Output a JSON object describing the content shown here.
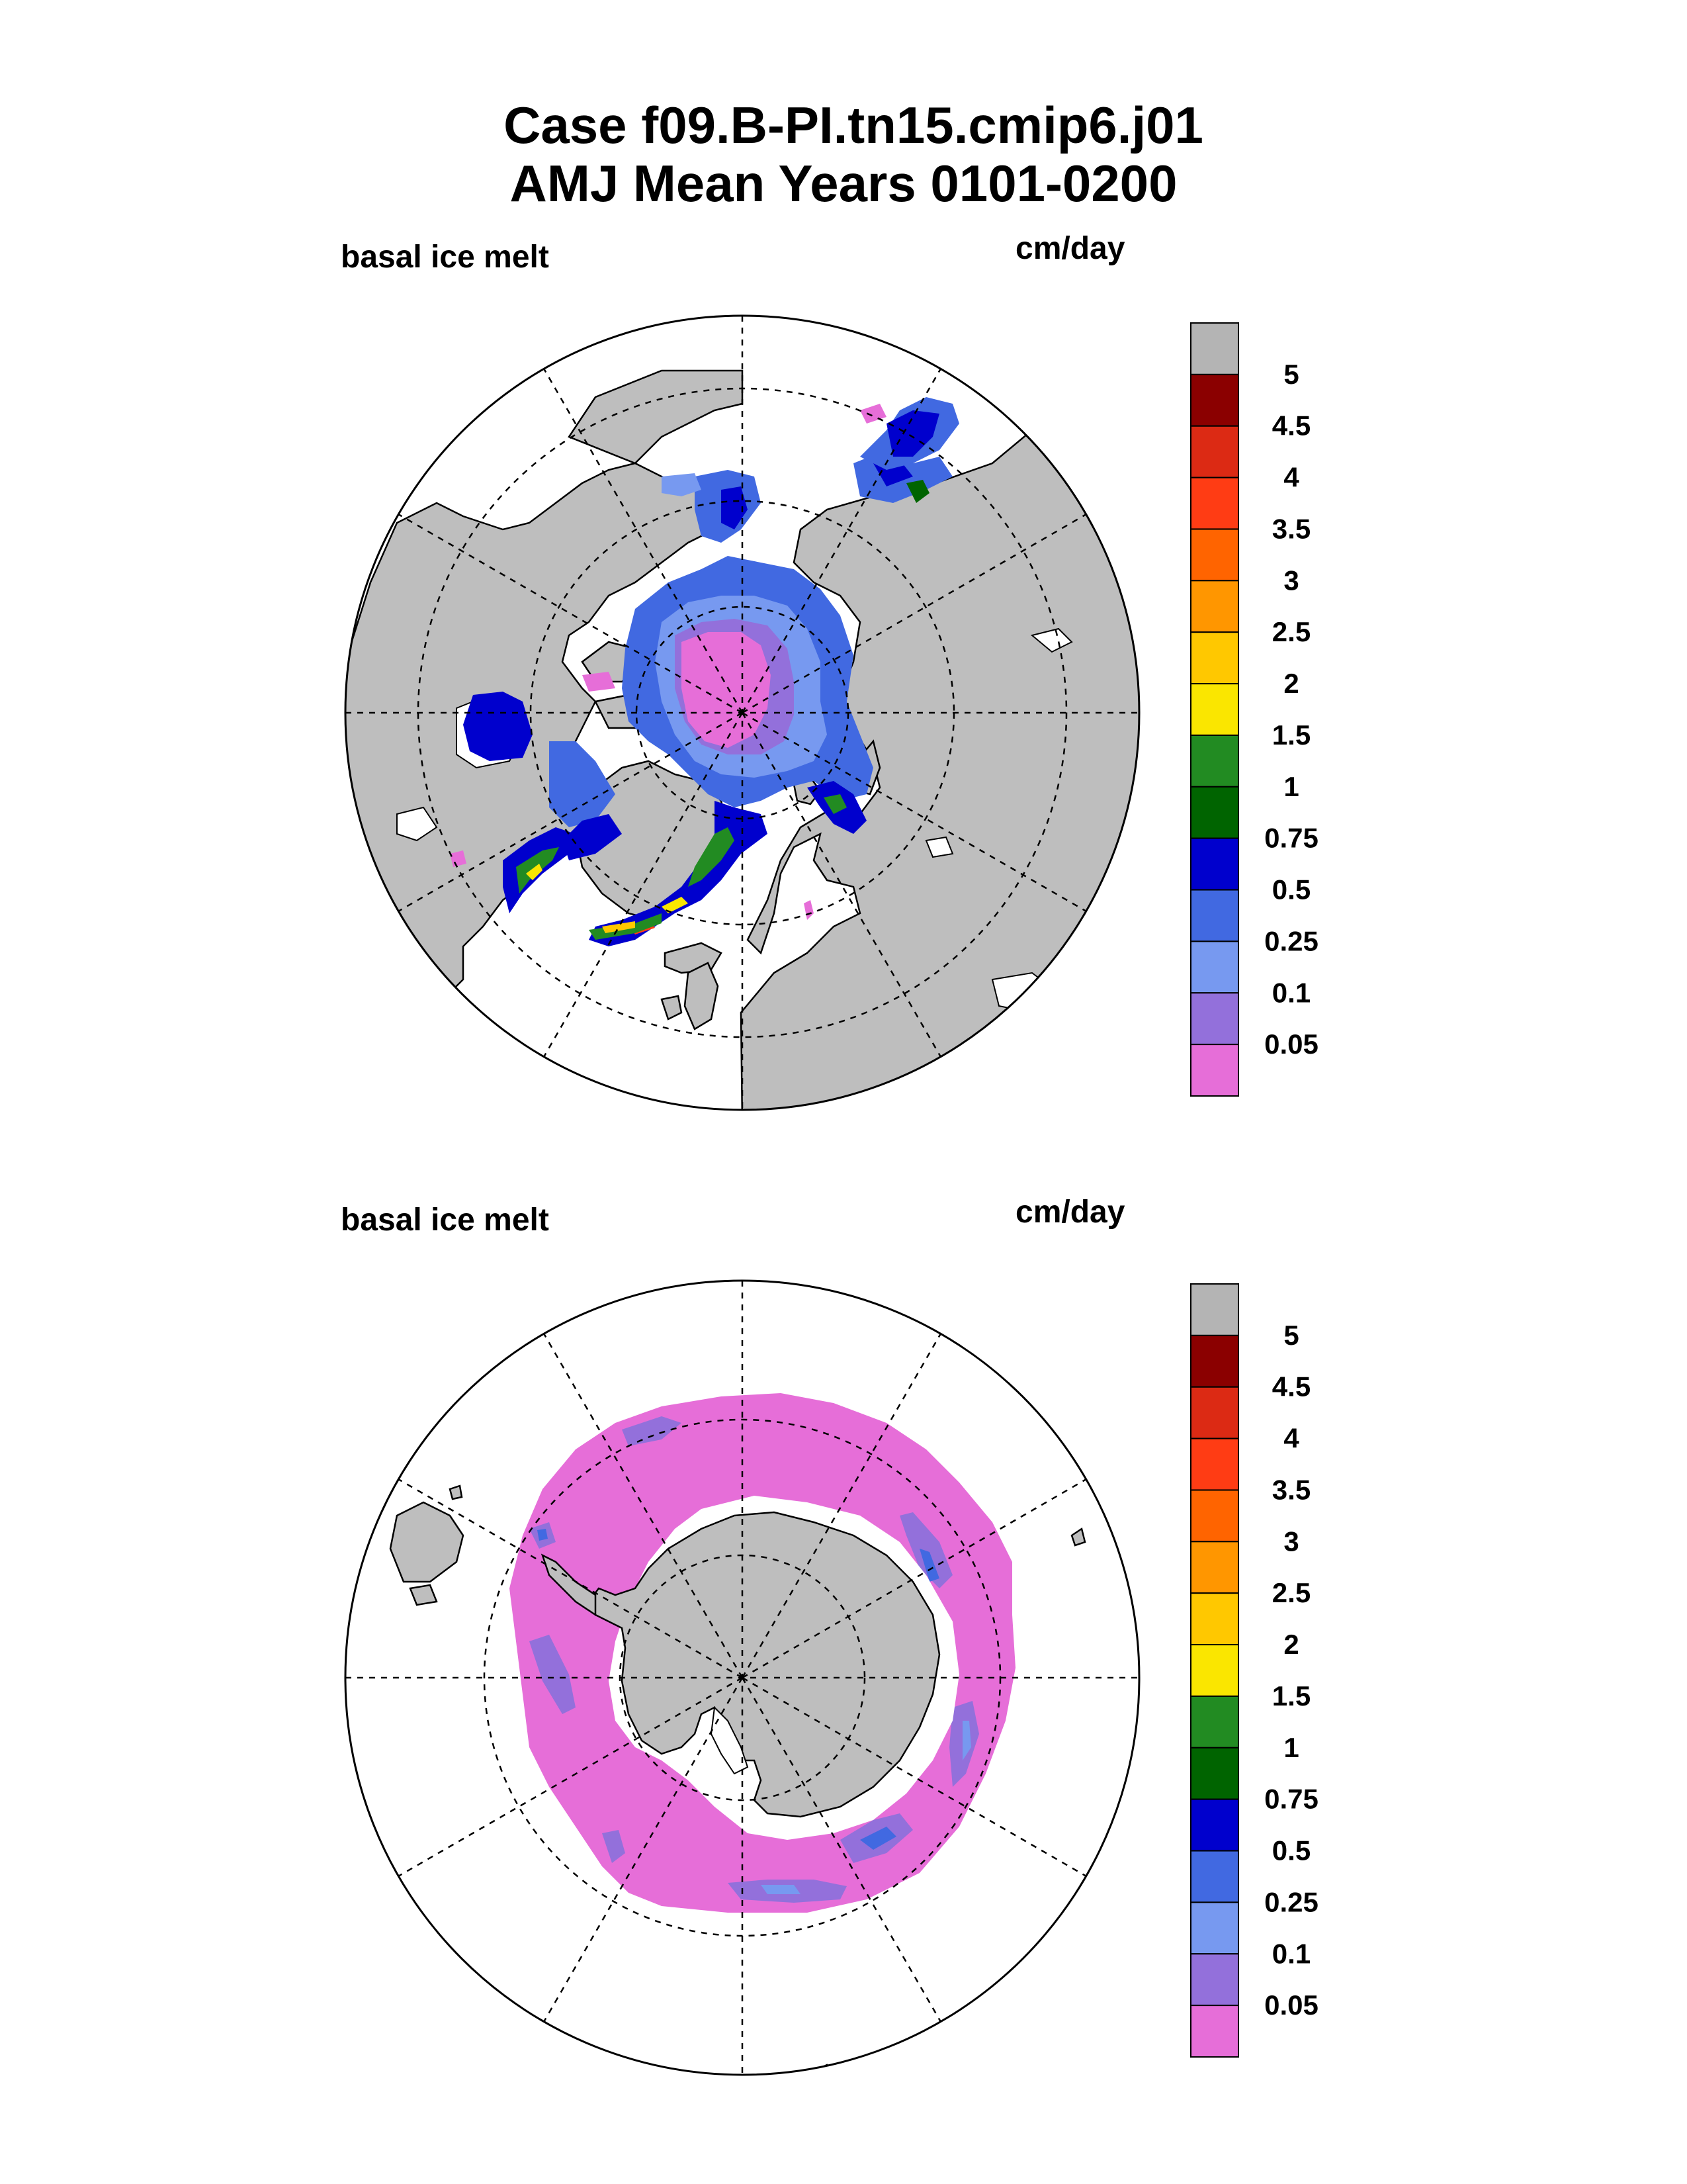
{
  "title": {
    "line1": "Case f09.B-PI.tn15.cmip6.j01",
    "line2": "AMJ Mean   Years 0101-0200"
  },
  "panels": [
    {
      "label": "basal ice melt",
      "units": "cm/day",
      "hemisphere": "north"
    },
    {
      "label": "basal ice melt",
      "units": "cm/day",
      "hemisphere": "south"
    }
  ],
  "colorbar": {
    "levels": [
      "5",
      "4.5",
      "4",
      "3.5",
      "3",
      "2.5",
      "2",
      "1.5",
      "1",
      "0.75",
      "0.5",
      "0.25",
      "0.1",
      "0.05"
    ],
    "colors": [
      "#b4b4b4",
      "#8b0000",
      "#dc2a14",
      "#ff3c14",
      "#ff6400",
      "#ff9600",
      "#ffc800",
      "#fae600",
      "#228b22",
      "#006400",
      "#0000cd",
      "#4169e1",
      "#7799f0",
      "#9370db",
      "#e66ed8"
    ]
  },
  "colors": {
    "land": "#bebebe",
    "ocean": "#ffffff"
  }
}
